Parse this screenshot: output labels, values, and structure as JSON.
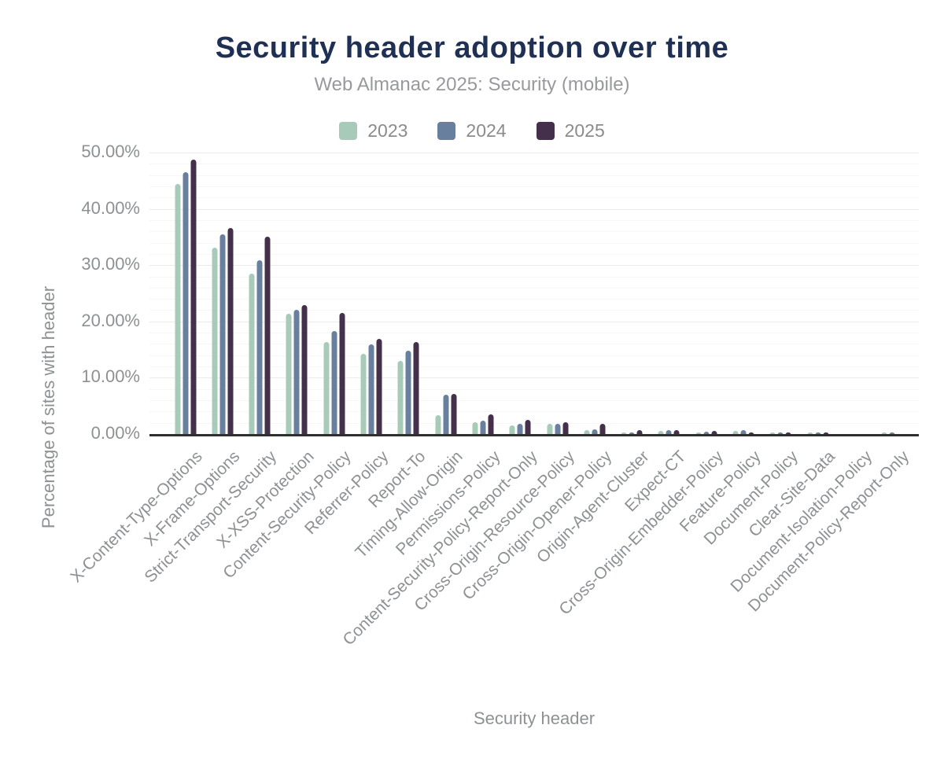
{
  "chart": {
    "title": "Security header adoption over time",
    "subtitle": "Web Almanac 2025: Security (mobile)",
    "x_axis_title": "Security header",
    "y_axis_title": "Percentage of sites with header"
  },
  "chart_data": {
    "type": "bar",
    "title": "Security header adoption over time",
    "subtitle": "Web Almanac 2025: Security (mobile)",
    "xlabel": "Security header",
    "ylabel": "Percentage of sites with header",
    "ylim": [
      0,
      50
    ],
    "y_tick_labels": [
      "0.00%",
      "10.00%",
      "20.00%",
      "30.00%",
      "40.00%",
      "50.00%"
    ],
    "y_tick_values": [
      0,
      10,
      20,
      30,
      40,
      50
    ],
    "minor_grid_step": 2,
    "grid": true,
    "legend_position": "top",
    "categories": [
      "X-Content-Type-Options",
      "X-Frame-Options",
      "Strict-Transport-Security",
      "X-XSS-Protection",
      "Content-Security-Policy",
      "Referrer-Policy",
      "Report-To",
      "Timing-Allow-Origin",
      "Permissions-Policy",
      "Content-Security-Policy-Report-Only",
      "Cross-Origin-Resource-Policy",
      "Cross-Origin-Opener-Policy",
      "Origin-Agent-Cluster",
      "Expect-CT",
      "Cross-Origin-Embedder-Policy",
      "Feature-Policy",
      "Document-Policy",
      "Clear-Site-Data",
      "Document-Isolation-Policy",
      "Document-Policy-Report-Only"
    ],
    "series": [
      {
        "name": "2023",
        "color": "#a8cbb9",
        "values": [
          44.6,
          33.3,
          28.6,
          21.5,
          16.5,
          14.4,
          13.2,
          3.5,
          2.3,
          1.7,
          1.9,
          0.9,
          0.25,
          0.7,
          0.2,
          0.7,
          0.15,
          0.15,
          0.02,
          0.1
        ]
      },
      {
        "name": "2024",
        "color": "#68809e",
        "values": [
          46.6,
          35.6,
          31.0,
          22.2,
          18.5,
          16.0,
          14.9,
          7.1,
          2.5,
          1.9,
          2.0,
          1.0,
          0.35,
          0.8,
          0.5,
          0.8,
          0.2,
          0.2,
          0.03,
          0.1
        ]
      },
      {
        "name": "2025",
        "color": "#44304a",
        "values": [
          48.9,
          36.7,
          35.2,
          23.0,
          21.7,
          17.1,
          16.5,
          7.3,
          3.7,
          2.7,
          2.3,
          2.0,
          0.8,
          0.8,
          0.75,
          0.45,
          0.15,
          0.1,
          0.05,
          0.08
        ]
      }
    ]
  }
}
